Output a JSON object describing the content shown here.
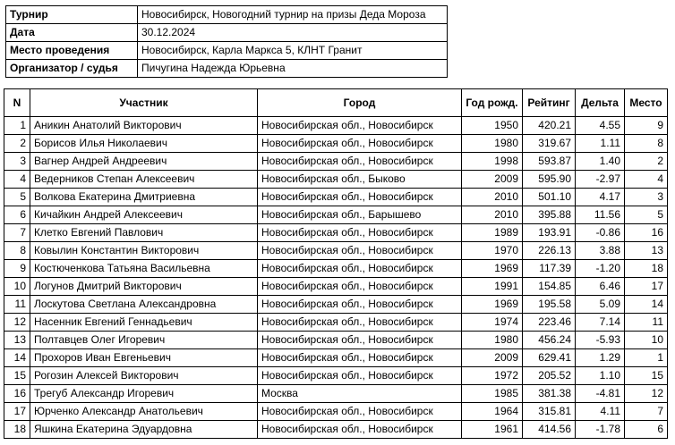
{
  "info": [
    {
      "label": "Турнир",
      "value": "Новосибирск, Новогодний турнир на призы Деда Мороза"
    },
    {
      "label": "Дата",
      "value": "30.12.2024"
    },
    {
      "label": "Место проведения",
      "value": "Новосибирск, Карла Маркса 5, КЛНТ Гранит"
    },
    {
      "label": "Организатор / судья",
      "value": "Пичугина Надежда Юрьевна"
    }
  ],
  "table": {
    "headers": [
      "N",
      "Участник",
      "Город",
      "Год рожд.",
      "Рейтинг",
      "Дельта",
      "Место"
    ],
    "rows": [
      [
        "1",
        "Аникин Анатолий Викторович",
        "Новосибирская обл., Новосибирск",
        "1950",
        "420.21",
        "4.55",
        "9"
      ],
      [
        "2",
        "Борисов Илья Николаевич",
        "Новосибирская обл., Новосибирск",
        "1980",
        "319.67",
        "1.11",
        "8"
      ],
      [
        "3",
        "Вагнер Андрей Андреевич",
        "Новосибирская обл., Новосибирск",
        "1998",
        "593.87",
        "1.40",
        "2"
      ],
      [
        "4",
        "Ведерников Степан Алексеевич",
        "Новосибирская обл., Быково",
        "2009",
        "595.90",
        "-2.97",
        "4"
      ],
      [
        "5",
        "Волкова Екатерина Дмитриевна",
        "Новосибирская обл., Новосибирск",
        "2010",
        "501.10",
        "4.17",
        "3"
      ],
      [
        "6",
        "Кичайкин Андрей Алексеевич",
        "Новосибирская обл., Барышево",
        "2010",
        "395.88",
        "11.56",
        "5"
      ],
      [
        "7",
        "Клетко Евгений Павлович",
        "Новосибирская обл., Новосибирск",
        "1989",
        "193.91",
        "-0.86",
        "16"
      ],
      [
        "8",
        "Ковылин Константин Викторович",
        "Новосибирская обл., Новосибирск",
        "1970",
        "226.13",
        "3.88",
        "13"
      ],
      [
        "9",
        "Костюченкова Татьяна Васильевна",
        "Новосибирская обл., Новосибирск",
        "1969",
        "117.39",
        "-1.20",
        "18"
      ],
      [
        "10",
        "Логунов Дмитрий Викторович",
        "Новосибирская обл., Новосибирск",
        "1991",
        "154.85",
        "6.46",
        "17"
      ],
      [
        "11",
        "Лоскутова Светлана Александровна",
        "Новосибирская обл., Новосибирск",
        "1969",
        "195.58",
        "5.09",
        "14"
      ],
      [
        "12",
        "Насенник Евгений Геннадьевич",
        "Новосибирская обл., Новосибирск",
        "1974",
        "223.46",
        "7.14",
        "11"
      ],
      [
        "13",
        "Полтавцев Олег Игоревич",
        "Новосибирская обл., Новосибирск",
        "1980",
        "456.24",
        "-5.93",
        "10"
      ],
      [
        "14",
        "Прохоров Иван Евгеньевич",
        "Новосибирская обл., Новосибирск",
        "2009",
        "629.41",
        "1.29",
        "1"
      ],
      [
        "15",
        "Рогозин Алексей Викторович",
        "Новосибирская обл., Новосибирск",
        "1972",
        "205.52",
        "1.10",
        "15"
      ],
      [
        "16",
        "Трегуб Александр Игоревич",
        "Москва",
        "1985",
        "381.38",
        "-4.81",
        "12"
      ],
      [
        "17",
        "Юрченко Александр Анатольевич",
        "Новосибирская обл., Новосибирск",
        "1964",
        "315.81",
        "4.11",
        "7"
      ],
      [
        "18",
        "Яшкина Екатерина Эдуардовна",
        "Новосибирская обл., Новосибирск",
        "1961",
        "414.56",
        "-1.78",
        "6"
      ]
    ]
  }
}
